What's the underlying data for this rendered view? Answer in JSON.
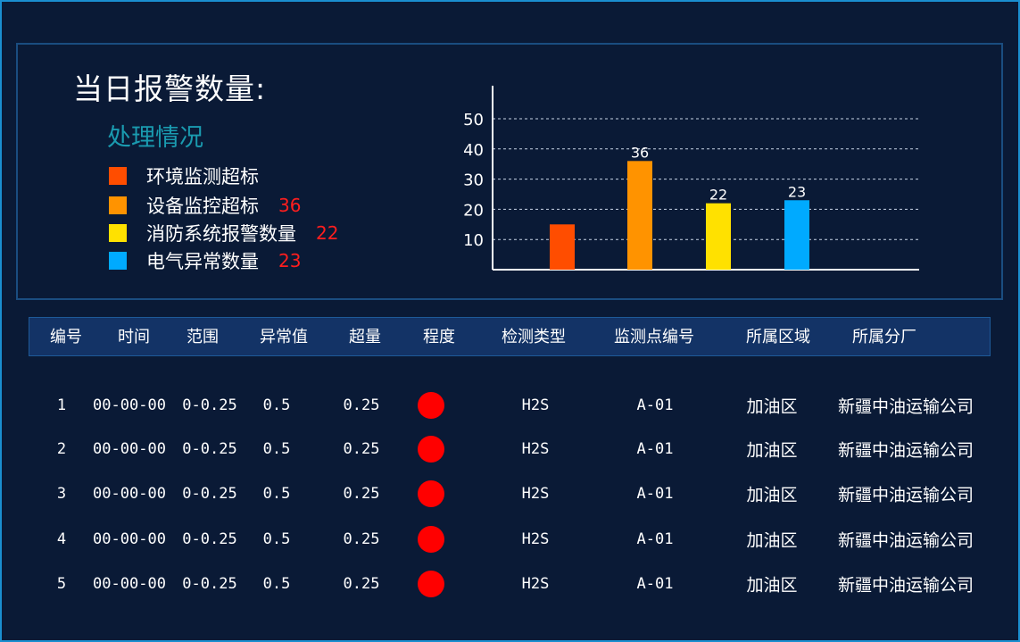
{
  "header": {
    "title": "当日报警数量:",
    "subtitle": "处理情况"
  },
  "legend": [
    {
      "label": "环境监测超标",
      "count": "",
      "color": "#ff4d00"
    },
    {
      "label": "设备监控超标",
      "count": "36",
      "color": "#ff9300"
    },
    {
      "label": "消防系统报警数量",
      "count": "22",
      "color": "#ffe100"
    },
    {
      "label": "电气异常数量",
      "count": "23",
      "color": "#00aaff"
    }
  ],
  "chart_data": {
    "type": "bar",
    "categories": [
      "环境监测超标",
      "设备监控超标",
      "消防系统报警数量",
      "电气异常数量"
    ],
    "values": [
      15,
      36,
      22,
      23
    ],
    "data_labels": [
      "",
      "36",
      "22",
      "23"
    ],
    "colors": [
      "#ff4d00",
      "#ff9300",
      "#ffe100",
      "#00aaff"
    ],
    "yticks": [
      10,
      20,
      30,
      40,
      50
    ],
    "ylim": [
      0,
      55
    ],
    "grid": true,
    "title": "",
    "xlabel": "",
    "ylabel": ""
  },
  "table": {
    "headers": [
      "编号",
      "时间",
      "范围",
      "异常值",
      "超量",
      "程度",
      "检测类型",
      "监测点编号",
      "所属区域",
      "所属分厂"
    ],
    "rows": [
      {
        "id": "1",
        "time": "00-00-00",
        "range": "0-0.25",
        "value": "0.5",
        "excess": "0.25",
        "level_color": "#ff0000",
        "type": "H2S",
        "point": "A-01",
        "area": "加油区",
        "branch": "新疆中油运输公司"
      },
      {
        "id": "2",
        "time": "00-00-00",
        "range": "0-0.25",
        "value": "0.5",
        "excess": "0.25",
        "level_color": "#ff0000",
        "type": "H2S",
        "point": "A-01",
        "area": "加油区",
        "branch": "新疆中油运输公司"
      },
      {
        "id": "3",
        "time": "00-00-00",
        "range": "0-0.25",
        "value": "0.5",
        "excess": "0.25",
        "level_color": "#ff0000",
        "type": "H2S",
        "point": "A-01",
        "area": "加油区",
        "branch": "新疆中油运输公司"
      },
      {
        "id": "4",
        "time": "00-00-00",
        "range": "0-0.25",
        "value": "0.5",
        "excess": "0.25",
        "level_color": "#ff0000",
        "type": "H2S",
        "point": "A-01",
        "area": "加油区",
        "branch": "新疆中油运输公司"
      },
      {
        "id": "5",
        "time": "00-00-00",
        "range": "0-0.25",
        "value": "0.5",
        "excess": "0.25",
        "level_color": "#ff0000",
        "type": "H2S",
        "point": "A-01",
        "area": "加油区",
        "branch": "新疆中油运输公司"
      }
    ]
  }
}
